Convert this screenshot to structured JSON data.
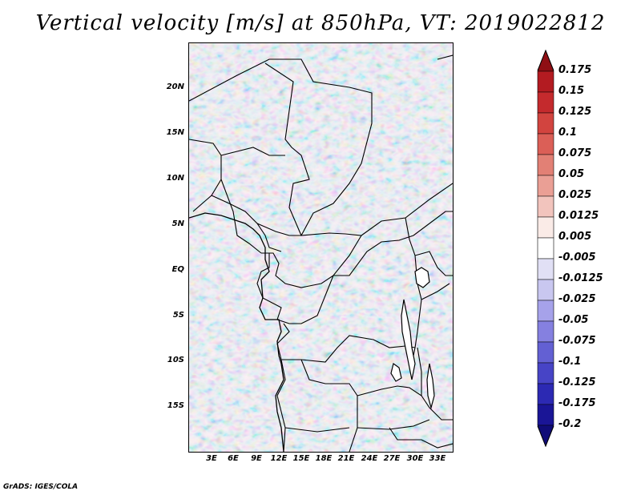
{
  "title": "Vertical velocity [m/s] at 850hPa, VT: 2019022812",
  "footer": "GrADS: IGES/COLA",
  "lat_labels": [
    "20N",
    "15N",
    "10N",
    "5N",
    "EQ",
    "5S",
    "10S",
    "15S"
  ],
  "lon_labels": [
    "3E",
    "6E",
    "9E",
    "12E",
    "15E",
    "18E",
    "21E",
    "24E",
    "27E",
    "30E",
    "33E"
  ],
  "colorbar": {
    "labels": [
      "0.175",
      "0.15",
      "0.125",
      "0.1",
      "0.075",
      "0.05",
      "0.025",
      "0.0125",
      "0.005",
      "-0.005",
      "-0.0125",
      "-0.025",
      "-0.05",
      "-0.075",
      "-0.1",
      "-0.125",
      "-0.175",
      "-0.2"
    ],
    "colors": [
      "#8f0f14",
      "#b31b21",
      "#c42a2d",
      "#d2443f",
      "#db5f57",
      "#e28075",
      "#ea9f95",
      "#f2c4bd",
      "#faebe7",
      "#ffffff",
      "#e1e0f5",
      "#c9c7f0",
      "#a6a2ea",
      "#8580e0",
      "#6360d3",
      "#4744c6",
      "#2c29b3",
      "#1a1596",
      "#100c78"
    ]
  }
}
